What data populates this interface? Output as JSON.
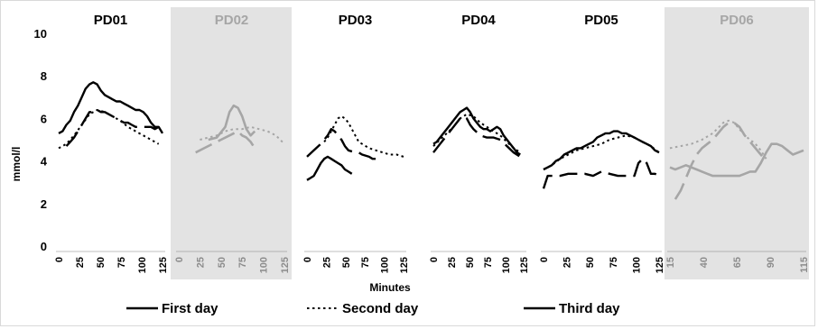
{
  "chart_data": {
    "type": "line",
    "xlabel": "Minutes",
    "ylabel": "mmol/l",
    "ylim": [
      0,
      10
    ],
    "yticks": [
      "0",
      "2",
      "4",
      "6",
      "8",
      "10"
    ],
    "grid": false,
    "legend_position": "bottom",
    "legend": [
      {
        "label": "First day",
        "style": "solid"
      },
      {
        "label": "Second day",
        "style": "dotted"
      },
      {
        "label": "Third day",
        "style": "dashed"
      }
    ],
    "colors": {
      "active": "#000000",
      "inactive": "#a6a6a6",
      "inactive_bg": "#d9d9d9"
    },
    "panels": [
      {
        "title": "PD01",
        "shaded": false,
        "xmax": 135,
        "xticks": [
          "0",
          "25",
          "50",
          "75",
          "100",
          "125"
        ],
        "series": [
          {
            "name": "First day",
            "style": "solid",
            "x": [
              0,
              5,
              10,
              15,
              20,
              25,
              30,
              35,
              40,
              45,
              50,
              55,
              60,
              65,
              70,
              75,
              80,
              85,
              90,
              95,
              100,
              105,
              110,
              115,
              120,
              125,
              130,
              135
            ],
            "y": [
              5.3,
              5.4,
              5.7,
              5.9,
              6.3,
              6.6,
              7.0,
              7.4,
              7.6,
              7.7,
              7.6,
              7.3,
              7.1,
              7.0,
              6.9,
              6.8,
              6.8,
              6.7,
              6.6,
              6.5,
              6.4,
              6.4,
              6.3,
              6.1,
              5.8,
              5.6,
              5.6,
              5.3
            ]
          },
          {
            "name": "Second day",
            "style": "dotted",
            "x": [
              0,
              10,
              20,
              30,
              40,
              50,
              60,
              70,
              80,
              90,
              100,
              110,
              120,
              130
            ],
            "y": [
              4.6,
              4.8,
              5.2,
              5.7,
              6.2,
              6.4,
              6.3,
              6.1,
              5.9,
              5.6,
              5.4,
              5.2,
              5.0,
              4.8
            ]
          },
          {
            "name": "Third day",
            "style": "dashed",
            "x": [
              10,
              15,
              20,
              25,
              30,
              35,
              40,
              45,
              50,
              55,
              60,
              65,
              70,
              75,
              80,
              85,
              90,
              95,
              100,
              105,
              110,
              115,
              120,
              125,
              130
            ],
            "y": [
              4.7,
              4.9,
              5.1,
              5.4,
              5.7,
              6.0,
              6.3,
              6.3,
              6.4,
              6.3,
              6.3,
              6.2,
              6.1,
              6.0,
              5.9,
              5.8,
              5.8,
              5.7,
              5.6,
              5.6,
              5.6,
              5.6,
              5.6,
              5.5,
              5.6
            ]
          }
        ]
      },
      {
        "title": "PD02",
        "shaded": true,
        "xmax": 125,
        "xticks": [
          "0",
          "25",
          "50",
          "75",
          "100",
          "125"
        ],
        "series": [
          {
            "name": "First day",
            "style": "solid",
            "x": [
              35,
              45,
              55,
              60,
              65,
              70,
              75,
              80,
              85,
              90
            ],
            "y": [
              5.0,
              5.1,
              5.6,
              6.3,
              6.6,
              6.5,
              6.1,
              5.5,
              5.2,
              5.4
            ]
          },
          {
            "name": "Second day",
            "style": "dotted",
            "x": [
              25,
              35,
              45,
              55,
              65,
              75,
              85,
              95,
              105,
              115,
              125
            ],
            "y": [
              5.0,
              5.1,
              5.2,
              5.4,
              5.5,
              5.5,
              5.6,
              5.5,
              5.4,
              5.2,
              4.8
            ]
          },
          {
            "name": "Third day",
            "style": "dashed",
            "x": [
              20,
              30,
              40,
              50,
              60,
              70,
              75,
              80,
              85,
              90
            ],
            "y": [
              4.4,
              4.6,
              4.8,
              5.0,
              5.2,
              5.4,
              5.2,
              5.1,
              4.9,
              4.6
            ]
          }
        ]
      },
      {
        "title": "PD03",
        "shaded": false,
        "xmax": 140,
        "xticks": [
          "0",
          "25",
          "50",
          "75",
          "100",
          "125"
        ],
        "series": [
          {
            "name": "First day",
            "style": "solid",
            "x": [
              0,
              5,
              10,
              15,
              20,
              25,
              30,
              35,
              40,
              45,
              50,
              55,
              60,
              65
            ],
            "y": [
              3.1,
              3.2,
              3.3,
              3.6,
              3.9,
              4.1,
              4.2,
              4.1,
              4.0,
              3.9,
              3.8,
              3.6,
              3.5,
              3.4
            ]
          },
          {
            "name": "Second day",
            "style": "dotted",
            "x": [
              25,
              30,
              35,
              40,
              45,
              50,
              55,
              60,
              65,
              70,
              75,
              80,
              90,
              100,
              110,
              120,
              130,
              140
            ],
            "y": [
              4.9,
              5.1,
              5.4,
              5.7,
              6.0,
              6.1,
              6.0,
              5.8,
              5.5,
              5.2,
              4.9,
              4.8,
              4.6,
              4.5,
              4.4,
              4.3,
              4.3,
              4.2
            ]
          },
          {
            "name": "Third day",
            "style": "dashed",
            "x": [
              0,
              10,
              20,
              30,
              35,
              40,
              45,
              50,
              55,
              60,
              70,
              75,
              80,
              90,
              95,
              100
            ],
            "y": [
              4.2,
              4.5,
              4.8,
              5.2,
              5.5,
              5.4,
              5.2,
              5.0,
              4.7,
              4.5,
              4.4,
              4.4,
              4.3,
              4.2,
              4.1,
              4.1
            ]
          }
        ]
      },
      {
        "title": "PD04",
        "shaded": false,
        "xmax": 135,
        "xticks": [
          "0",
          "25",
          "50",
          "75",
          "100",
          "125"
        ],
        "series": [
          {
            "name": "First day",
            "style": "solid",
            "x": [
              0,
              5,
              10,
              15,
              20,
              25,
              30,
              35,
              40,
              45,
              50,
              55,
              60,
              65,
              70,
              75,
              80,
              85,
              90,
              95,
              100,
              105,
              110,
              115,
              120,
              125,
              130
            ],
            "y": [
              4.8,
              4.9,
              5.1,
              5.3,
              5.5,
              5.7,
              5.9,
              6.1,
              6.3,
              6.4,
              6.5,
              6.3,
              6.0,
              5.8,
              5.6,
              5.5,
              5.5,
              5.4,
              5.5,
              5.6,
              5.5,
              5.2,
              5.0,
              4.8,
              4.6,
              4.4,
              4.3
            ]
          },
          {
            "name": "Second day",
            "style": "dotted",
            "x": [
              0,
              10,
              20,
              30,
              40,
              50,
              60,
              70,
              80,
              90,
              100,
              110,
              120,
              130
            ],
            "y": [
              4.7,
              5.0,
              5.3,
              5.6,
              6.0,
              6.2,
              6.1,
              5.8,
              5.6,
              5.4,
              5.2,
              4.9,
              4.6,
              4.4
            ]
          },
          {
            "name": "Third day",
            "style": "dashed",
            "x": [
              0,
              10,
              20,
              30,
              40,
              45,
              50,
              55,
              60,
              70,
              80,
              90,
              100,
              110,
              120,
              130
            ],
            "y": [
              4.4,
              4.8,
              5.2,
              5.6,
              6.0,
              6.1,
              6.0,
              5.7,
              5.5,
              5.2,
              5.1,
              5.1,
              5.0,
              4.7,
              4.4,
              4.2
            ]
          }
        ]
      },
      {
        "title": "PD05",
        "shaded": false,
        "xmax": 140,
        "xticks": [
          "0",
          "25",
          "50",
          "75",
          "100",
          "125"
        ],
        "series": [
          {
            "name": "First day",
            "style": "solid",
            "x": [
              0,
              5,
              10,
              15,
              20,
              25,
              30,
              35,
              40,
              45,
              50,
              55,
              60,
              65,
              70,
              75,
              80,
              85,
              90,
              95,
              100,
              105,
              110,
              115,
              120,
              125,
              130,
              135,
              140
            ],
            "y": [
              3.6,
              3.7,
              3.8,
              4.0,
              4.1,
              4.3,
              4.4,
              4.5,
              4.6,
              4.6,
              4.7,
              4.8,
              4.9,
              5.1,
              5.2,
              5.3,
              5.3,
              5.4,
              5.4,
              5.3,
              5.3,
              5.2,
              5.1,
              5.0,
              4.9,
              4.8,
              4.7,
              4.5,
              4.4
            ]
          },
          {
            "name": "Second day",
            "style": "dotted",
            "x": [
              0,
              10,
              20,
              30,
              40,
              50,
              60,
              70,
              80,
              90,
              100,
              110,
              120,
              130,
              140
            ],
            "y": [
              3.6,
              3.8,
              4.1,
              4.3,
              4.5,
              4.6,
              4.7,
              4.8,
              5.0,
              5.1,
              5.2,
              5.1,
              4.9,
              4.7,
              4.4
            ]
          },
          {
            "name": "Third day",
            "style": "dashed",
            "x": [
              0,
              5,
              10,
              20,
              30,
              40,
              50,
              60,
              70,
              80,
              90,
              100,
              110,
              115,
              120,
              125,
              130,
              135,
              140
            ],
            "y": [
              2.7,
              3.3,
              3.3,
              3.3,
              3.4,
              3.4,
              3.4,
              3.3,
              3.5,
              3.4,
              3.3,
              3.3,
              3.3,
              3.9,
              4.1,
              3.9,
              3.4,
              3.4,
              3.3
            ]
          }
        ]
      },
      {
        "title": "PD06",
        "shaded": true,
        "xmax": 125,
        "xticks": [
          "15",
          "40",
          "65",
          "90",
          "115"
        ],
        "series": [
          {
            "name": "First day",
            "style": "solid",
            "x": [
              0,
              5,
              10,
              15,
              20,
              25,
              30,
              35,
              40,
              45,
              50,
              55,
              60,
              65,
              70,
              75,
              80,
              85,
              90,
              95,
              100,
              105,
              110,
              115,
              120,
              125
            ],
            "y": [
              3.7,
              3.6,
              3.7,
              3.8,
              3.7,
              3.6,
              3.5,
              3.4,
              3.3,
              3.3,
              3.3,
              3.3,
              3.3,
              3.3,
              3.4,
              3.5,
              3.5,
              3.9,
              4.4,
              4.8,
              4.8,
              4.7,
              4.5,
              4.3,
              4.4,
              4.5
            ]
          },
          {
            "name": "Second day",
            "style": "dotted",
            "x": [
              0,
              10,
              20,
              30,
              40,
              50,
              55,
              60,
              65,
              70,
              75,
              80,
              85,
              90
            ],
            "y": [
              4.6,
              4.7,
              4.8,
              5.0,
              5.3,
              5.8,
              5.9,
              5.8,
              5.5,
              5.2,
              5.0,
              4.8,
              4.5,
              4.1
            ]
          },
          {
            "name": "Third day",
            "style": "dashed",
            "x": [
              5,
              10,
              15,
              20,
              25,
              30,
              35,
              40,
              45,
              50,
              55,
              60,
              65,
              70,
              75,
              80,
              85,
              90
            ],
            "y": [
              2.2,
              2.6,
              3.2,
              3.8,
              4.3,
              4.6,
              4.8,
              5.0,
              5.3,
              5.6,
              5.8,
              5.8,
              5.6,
              5.2,
              4.9,
              4.6,
              4.3,
              4.0
            ]
          }
        ]
      }
    ]
  }
}
